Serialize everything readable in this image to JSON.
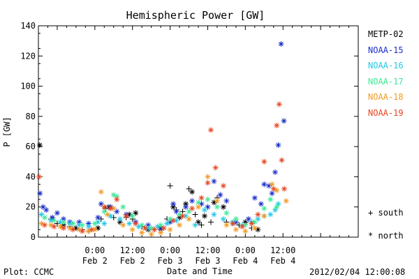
{
  "chart_data": {
    "type": "scatter",
    "title": "Hemispheric Power [GW]",
    "xlabel": "Date and Time",
    "ylabel": "P [GW]",
    "ylim": [
      0,
      140
    ],
    "yticks": [
      0,
      20,
      40,
      60,
      80,
      100,
      120,
      140
    ],
    "xlim_hours": [
      -18,
      84
    ],
    "xticks": [
      {
        "hour": 0,
        "time": "0:00",
        "date": "Feb 2"
      },
      {
        "hour": 12,
        "time": "12:00",
        "date": "Feb 2"
      },
      {
        "hour": 24,
        "time": "0:00",
        "date": "Feb 3"
      },
      {
        "hour": 36,
        "time": "12:00",
        "date": "Feb 3"
      },
      {
        "hour": 48,
        "time": "0:00",
        "date": "Feb 4"
      },
      {
        "hour": 60,
        "time": "12:00",
        "date": "Feb 4"
      }
    ],
    "marker_legend": [
      {
        "symbol": "+",
        "label": "south"
      },
      {
        "symbol": "*",
        "label": "north"
      }
    ],
    "series": [
      {
        "name": "METP-02",
        "color": "#000000",
        "points": [
          [
            -17.6,
            61,
            "*"
          ],
          [
            -14,
            12,
            "+"
          ],
          [
            -12,
            9,
            "+"
          ],
          [
            -10,
            8,
            "*"
          ],
          [
            -8,
            7,
            "+"
          ],
          [
            -6,
            6,
            "*"
          ],
          [
            -4,
            5,
            "+"
          ],
          [
            -2,
            4,
            "+"
          ],
          [
            1,
            6,
            "*"
          ],
          [
            2,
            12,
            "+"
          ],
          [
            3.5,
            19,
            "+"
          ],
          [
            4.5,
            20,
            "*"
          ],
          [
            6,
            13,
            "+"
          ],
          [
            8,
            10,
            "*"
          ],
          [
            10,
            13,
            "+"
          ],
          [
            11,
            15,
            "*"
          ],
          [
            12,
            12,
            "+"
          ],
          [
            13,
            16,
            "*"
          ],
          [
            15,
            7,
            "+"
          ],
          [
            17,
            5,
            "*"
          ],
          [
            19,
            5,
            "+"
          ],
          [
            21,
            6,
            "*"
          ],
          [
            23,
            12,
            "+"
          ],
          [
            24,
            34,
            "+"
          ],
          [
            25,
            20,
            "*"
          ],
          [
            26,
            18,
            "+"
          ],
          [
            27,
            13,
            "*"
          ],
          [
            28,
            17,
            "+"
          ],
          [
            29,
            22,
            "*"
          ],
          [
            30,
            32,
            "+"
          ],
          [
            31,
            30,
            "*"
          ],
          [
            32,
            15,
            "+"
          ],
          [
            33,
            10,
            "*"
          ],
          [
            34,
            8,
            "+"
          ],
          [
            35,
            14,
            "*"
          ],
          [
            37,
            10,
            "+"
          ],
          [
            38,
            23,
            "*"
          ],
          [
            39,
            26,
            "+"
          ],
          [
            41,
            20,
            "*"
          ],
          [
            42,
            10,
            "+"
          ],
          [
            44,
            9,
            "*"
          ],
          [
            46,
            8,
            "+"
          ],
          [
            48,
            10,
            "*"
          ],
          [
            50,
            6,
            "+"
          ],
          [
            52,
            5,
            "*"
          ]
        ]
      },
      {
        "name": "NOAA-15",
        "color": "#1a2ec8",
        "points": [
          [
            -17.5,
            29,
            "*"
          ],
          [
            -16.5,
            20,
            "*"
          ],
          [
            -15.5,
            18,
            "*"
          ],
          [
            -13.5,
            13,
            "*"
          ],
          [
            -12,
            16,
            "*"
          ],
          [
            -10,
            12,
            "*"
          ],
          [
            -8,
            10,
            "*"
          ],
          [
            -5,
            10,
            "*"
          ],
          [
            -2,
            9,
            "*"
          ],
          [
            1,
            13,
            "*"
          ],
          [
            2,
            22,
            "*"
          ],
          [
            5,
            20,
            "*"
          ],
          [
            7,
            17,
            "*"
          ],
          [
            10,
            15,
            "*"
          ],
          [
            13,
            10,
            "*"
          ],
          [
            17,
            8,
            "*"
          ],
          [
            21,
            5,
            "*"
          ],
          [
            24,
            10,
            "*"
          ],
          [
            25,
            22,
            "*"
          ],
          [
            26,
            17,
            "*"
          ],
          [
            29,
            20,
            "*"
          ],
          [
            31,
            24,
            "*"
          ],
          [
            34,
            22,
            "*"
          ],
          [
            36,
            20,
            "*"
          ],
          [
            38,
            37,
            "*"
          ],
          [
            40,
            28,
            "*"
          ],
          [
            42,
            24,
            "*"
          ],
          [
            45,
            10,
            "*"
          ],
          [
            49,
            12,
            "*"
          ],
          [
            51,
            26,
            "*"
          ],
          [
            53,
            22,
            "*"
          ],
          [
            54,
            35,
            "*"
          ],
          [
            55.5,
            34,
            "*"
          ],
          [
            56.5,
            29,
            "*"
          ],
          [
            57.5,
            43,
            "*"
          ],
          [
            58.5,
            61,
            "*"
          ],
          [
            59.4,
            128,
            "*"
          ],
          [
            60.3,
            77,
            "*"
          ]
        ]
      },
      {
        "name": "NOAA-16",
        "color": "#22c8e6",
        "points": [
          [
            -17,
            15,
            "*"
          ],
          [
            -14,
            11,
            "*"
          ],
          [
            -11,
            10,
            "*"
          ],
          [
            -8,
            9,
            "*"
          ],
          [
            -5,
            8,
            "*"
          ],
          [
            -2,
            7,
            "*"
          ],
          [
            1,
            10,
            "*"
          ],
          [
            3,
            9,
            "*"
          ],
          [
            5,
            14,
            "*"
          ],
          [
            8,
            12,
            "*"
          ],
          [
            11,
            9,
            "*"
          ],
          [
            14,
            7,
            "*"
          ],
          [
            17,
            6,
            "*"
          ],
          [
            20,
            7,
            "*"
          ],
          [
            23,
            9,
            "*"
          ],
          [
            26,
            11,
            "*"
          ],
          [
            29,
            14,
            "*"
          ],
          [
            32,
            8,
            "*"
          ],
          [
            35,
            18,
            "*"
          ],
          [
            38,
            15,
            "*"
          ],
          [
            41,
            12,
            "*"
          ],
          [
            44,
            10,
            "*"
          ],
          [
            47,
            8,
            "*"
          ],
          [
            50,
            10,
            "*"
          ],
          [
            52,
            12,
            "*"
          ],
          [
            54,
            14,
            "*"
          ],
          [
            56,
            15,
            "*"
          ],
          [
            57.5,
            18,
            "*"
          ],
          [
            58.5,
            22,
            "*"
          ]
        ]
      },
      {
        "name": "NOAA-17",
        "color": "#3ce896",
        "points": [
          [
            -16,
            13,
            "*"
          ],
          [
            -13,
            11,
            "*"
          ],
          [
            -10,
            10,
            "*"
          ],
          [
            -7,
            9,
            "*"
          ],
          [
            -4,
            8,
            "*"
          ],
          [
            0,
            9,
            "*"
          ],
          [
            3,
            17,
            "*"
          ],
          [
            6,
            28,
            "*"
          ],
          [
            7,
            27,
            "*"
          ],
          [
            9,
            20,
            "*"
          ],
          [
            12,
            14,
            "*"
          ],
          [
            15,
            8,
            "*"
          ],
          [
            18,
            6,
            "*"
          ],
          [
            21,
            8,
            "*"
          ],
          [
            24,
            12,
            "*"
          ],
          [
            27,
            15,
            "*"
          ],
          [
            30,
            17,
            "*"
          ],
          [
            33,
            23,
            "*"
          ],
          [
            36,
            25,
            "*"
          ],
          [
            39,
            20,
            "*"
          ],
          [
            42,
            16,
            "*"
          ],
          [
            45,
            12,
            "*"
          ],
          [
            48,
            8,
            "*"
          ],
          [
            51,
            10,
            "*"
          ],
          [
            54,
            19,
            "*"
          ],
          [
            56,
            25,
            "*"
          ],
          [
            58,
            20,
            "*"
          ]
        ]
      },
      {
        "name": "NOAA-18",
        "color": "#f09a20",
        "points": [
          [
            -17,
            9,
            "*"
          ],
          [
            -14,
            8,
            "*"
          ],
          [
            -11,
            7,
            "*"
          ],
          [
            -8,
            6,
            "*"
          ],
          [
            -5,
            5,
            "*"
          ],
          [
            -2,
            4,
            "*"
          ],
          [
            0,
            5,
            "*"
          ],
          [
            2,
            30,
            "*"
          ],
          [
            4,
            15,
            "*"
          ],
          [
            6,
            19,
            "*"
          ],
          [
            9,
            8,
            "*"
          ],
          [
            12,
            5,
            "*"
          ],
          [
            15,
            3,
            "*"
          ],
          [
            18,
            2,
            "*"
          ],
          [
            21,
            3,
            "*"
          ],
          [
            24,
            5,
            "*"
          ],
          [
            27,
            8,
            "*"
          ],
          [
            30,
            12,
            "*"
          ],
          [
            33,
            20,
            "*"
          ],
          [
            36,
            40,
            "*"
          ],
          [
            39,
            24,
            "*"
          ],
          [
            42,
            8,
            "*"
          ],
          [
            45,
            5,
            "*"
          ],
          [
            48,
            4,
            "*"
          ],
          [
            51,
            6,
            "*"
          ],
          [
            54,
            14,
            "*"
          ],
          [
            56.5,
            35,
            "*"
          ],
          [
            58,
            31,
            "*"
          ],
          [
            61,
            24,
            "*"
          ]
        ]
      },
      {
        "name": "NOAA-19",
        "color": "#e84420",
        "points": [
          [
            -17.8,
            40,
            "*"
          ],
          [
            -16,
            8,
            "*"
          ],
          [
            -13,
            7,
            "*"
          ],
          [
            -10,
            6,
            "*"
          ],
          [
            -7,
            5,
            "*"
          ],
          [
            -4,
            4,
            "*"
          ],
          [
            -1,
            5,
            "*"
          ],
          [
            3,
            20,
            "*"
          ],
          [
            5,
            19,
            "*"
          ],
          [
            7,
            25,
            "*"
          ],
          [
            10,
            14,
            "*"
          ],
          [
            13,
            9,
            "*"
          ],
          [
            16,
            6,
            "*"
          ],
          [
            19,
            5,
            "*"
          ],
          [
            22,
            6,
            "*"
          ],
          [
            25,
            11,
            "*"
          ],
          [
            28,
            14,
            "*"
          ],
          [
            31,
            19,
            "*"
          ],
          [
            34,
            26,
            "*"
          ],
          [
            36,
            36,
            "*"
          ],
          [
            37,
            71,
            "*"
          ],
          [
            38.5,
            46,
            "*"
          ],
          [
            41,
            34,
            "*"
          ],
          [
            44,
            9,
            "*"
          ],
          [
            47,
            7,
            "*"
          ],
          [
            50,
            9,
            "*"
          ],
          [
            52,
            15,
            "*"
          ],
          [
            54,
            50,
            "*"
          ],
          [
            57,
            32,
            "*"
          ],
          [
            58,
            74,
            "*"
          ],
          [
            58.8,
            88,
            "*"
          ],
          [
            59.6,
            51,
            "*"
          ],
          [
            60.4,
            32,
            "*"
          ]
        ]
      }
    ]
  },
  "footer": {
    "left": "Plot: CCMC",
    "right": "2012/02/04 12:00:08"
  }
}
